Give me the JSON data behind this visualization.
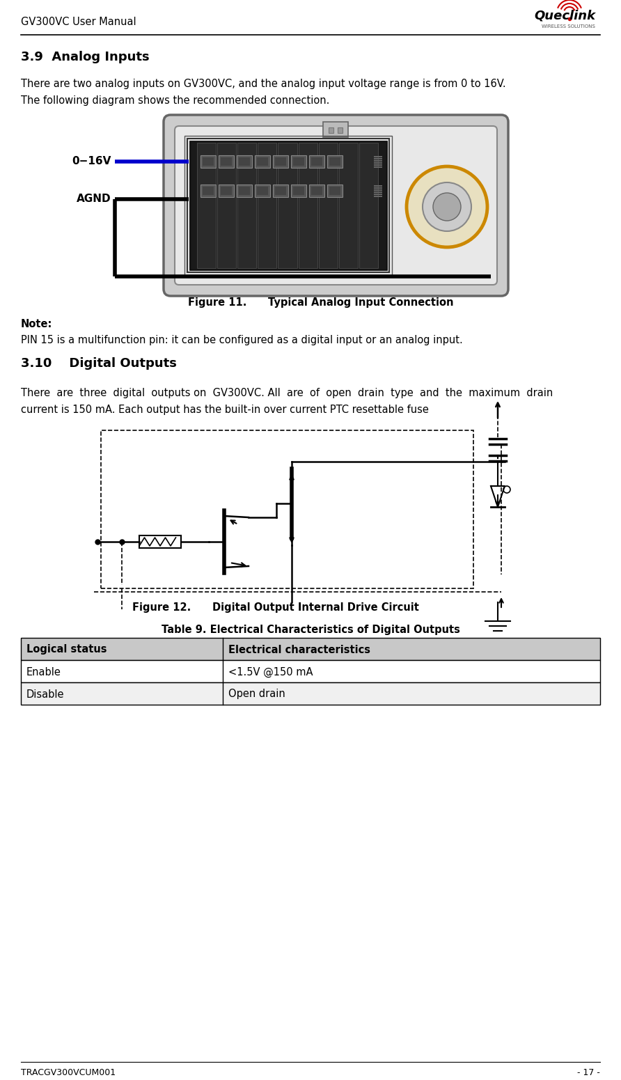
{
  "page_width": 8.92,
  "page_height": 15.51,
  "bg_color": "#ffffff",
  "header_text": "GV300VC User Manual",
  "footer_left": "TRACGV300VCUM001",
  "footer_right": "- 17 -",
  "section1_title": "3.9  Analog Inputs",
  "section1_body1": "There are two analog inputs on GV300VC, and the analog input voltage range is from 0 to 16V.",
  "section1_body2": "The following diagram shows the recommended connection.",
  "fig11_caption_num": "Figure 11.",
  "fig11_caption_text": "Typical Analog Input Connection",
  "note_label": "Note:",
  "note_text": "PIN 15 is a multifunction pin: it can be configured as a digital input or an analog input.",
  "section2_title": "3.10    Digital Outputs",
  "section2_body1": "There  are  three  digital  outputs on  GV300VC. All  are  of  open  drain  type  and  the  maximum  drain",
  "section2_body2": "current is 150 mA. Each output has the built-in over current PTC resettable fuse",
  "fig12_caption_num": "Figure 12.",
  "fig12_caption_text": "Digital Output Internal Drive Circuit",
  "table9_title": "Table 9. Electrical Characteristics of Digital Outputs",
  "table9_headers": [
    "Logical status",
    "Electrical characteristics"
  ],
  "table9_rows": [
    [
      "Enable",
      "<1.5V @150 mA"
    ],
    [
      "Disable",
      "Open drain"
    ]
  ],
  "analog_label1": "0−16V",
  "analog_label2": "AGND",
  "blue_wire_color": "#0000cc",
  "black_color": "#000000",
  "gray_device": "#cccccc",
  "gray_inner": "#e8e8e8",
  "dark_connector": "#333333",
  "pin_color": "#666666",
  "orange_circle": "#cc8800",
  "table_header_bg": "#c8c8c8",
  "table_row1_bg": "#ffffff",
  "table_row2_bg": "#f0f0f0"
}
